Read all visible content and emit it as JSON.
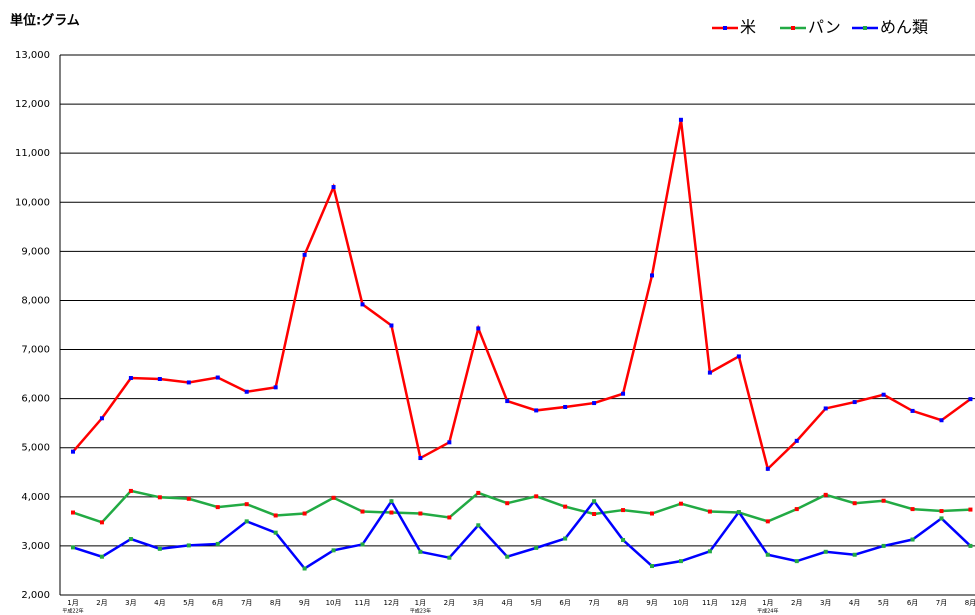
{
  "chart_data": {
    "type": "line",
    "unit_label": "単位:グラム",
    "categories": [
      "1月",
      "2月",
      "3月",
      "4月",
      "5月",
      "6月",
      "7月",
      "8月",
      "9月",
      "10月",
      "11月",
      "12月",
      "1月",
      "2月",
      "3月",
      "4月",
      "5月",
      "6月",
      "7月",
      "8月",
      "9月",
      "10月",
      "11月",
      "12月",
      "1月",
      "2月",
      "3月",
      "4月",
      "5月",
      "6月",
      "7月",
      "8月"
    ],
    "category_years": [
      "平成22年",
      null,
      null,
      null,
      null,
      null,
      null,
      null,
      null,
      null,
      null,
      null,
      "平成23年",
      null,
      null,
      null,
      null,
      null,
      null,
      null,
      null,
      null,
      null,
      null,
      "平成24年",
      null,
      null,
      null,
      null,
      null,
      null,
      null
    ],
    "series": [
      {
        "name": "米",
        "color": "#ff0000",
        "marker_color": "#0000ff",
        "values": [
          4920,
          5600,
          6420,
          6400,
          6330,
          6430,
          6140,
          6230,
          8930,
          10310,
          7920,
          7490,
          4790,
          5110,
          7430,
          5950,
          5760,
          5830,
          5910,
          6100,
          8510,
          11680,
          6530,
          6860,
          4570,
          5140,
          5800,
          5930,
          6080,
          5750,
          5560,
          5990
        ]
      },
      {
        "name": "パン",
        "color": "#22aa44",
        "marker_color": "#ff0000",
        "values": [
          3680,
          3480,
          4120,
          3990,
          3960,
          3790,
          3850,
          3620,
          3660,
          3980,
          3700,
          3680,
          3660,
          3580,
          4080,
          3870,
          4010,
          3800,
          3650,
          3730,
          3660,
          3860,
          3700,
          3680,
          3500,
          3750,
          4040,
          3870,
          3920,
          3750,
          3710,
          3740
        ]
      },
      {
        "name": "めん類",
        "color": "#0000ff",
        "marker_color": "#22aa44",
        "values": [
          2970,
          2780,
          3140,
          2940,
          3010,
          3040,
          3500,
          3270,
          2540,
          2910,
          3030,
          3910,
          2880,
          2760,
          3420,
          2780,
          2960,
          3150,
          3910,
          3120,
          2590,
          2690,
          2890,
          3690,
          2820,
          2690,
          2880,
          2820,
          3000,
          3130,
          3560,
          3000
        ]
      }
    ],
    "ylim": [
      2000,
      13000
    ],
    "yticks": [
      {
        "value": 2000,
        "label": "2,000"
      },
      {
        "value": 3000,
        "label": "3,000"
      },
      {
        "value": 4000,
        "label": "4,000"
      },
      {
        "value": 5000,
        "label": "5,000"
      },
      {
        "value": 6000,
        "label": "6,000"
      },
      {
        "value": 7000,
        "label": "7,000"
      },
      {
        "value": 8000,
        "label": "8,000"
      },
      {
        "value": 9000,
        "label": "9,000"
      },
      {
        "value": 10000,
        "label": "10,000"
      },
      {
        "value": 11000,
        "label": "11,000"
      },
      {
        "value": 12000,
        "label": "12,000"
      },
      {
        "value": 13000,
        "label": "13,000"
      }
    ],
    "grid": true,
    "legend": "top-right"
  }
}
